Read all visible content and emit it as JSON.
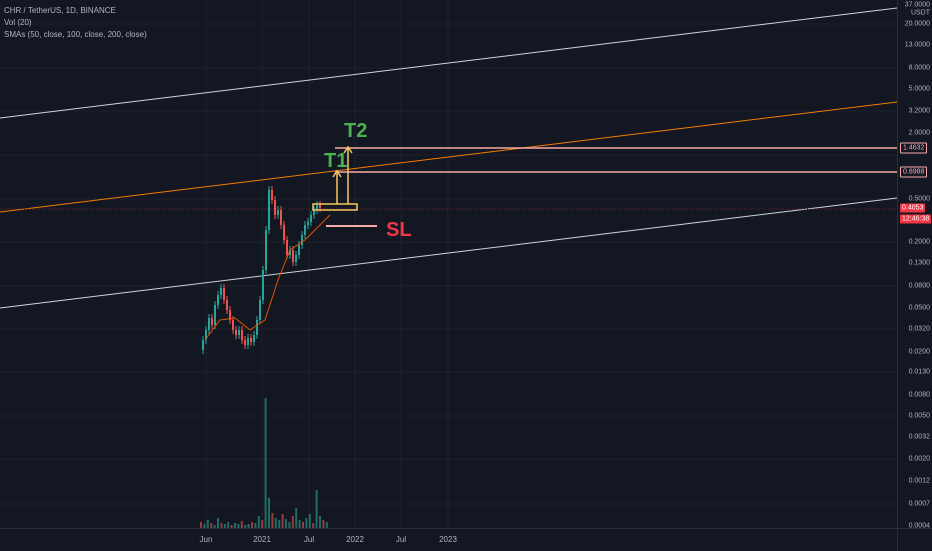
{
  "legend": {
    "symbol": "CHR / TetherUS, 1D, BINANCE",
    "volume": "Vol (20)",
    "sma": "SMAs (50, close, 100, close, 200, close)"
  },
  "price_axis": {
    "currency": "USDT",
    "ticks": [
      "37.0000",
      "20.0000",
      "13.0000",
      "8.0000",
      "5.0000",
      "3.2000",
      "2.0000",
      "0.5000",
      "0.2000",
      "0.1300",
      "0.0800",
      "0.0500",
      "0.0320",
      "0.0200",
      "0.0130",
      "0.0080",
      "0.0050",
      "0.0032",
      "0.0020",
      "0.0012",
      "0.0007",
      "0.0004"
    ],
    "tag_t2": "1.4632",
    "tag_t1": "0.8988",
    "tag_last_price": "0.4053",
    "tag_countdown": "12:46:38"
  },
  "time_axis": {
    "labels": [
      "Jun",
      "2021",
      "Jul",
      "2022",
      "Jul",
      "2023"
    ]
  },
  "annotations": {
    "t2": "T2",
    "t1": "T1",
    "sl": "SL"
  },
  "colors": {
    "background": "#131722",
    "up": "#26a69a",
    "down": "#ef5350",
    "target_lines": "#f7a9a8",
    "orange_channel": "#f57c00",
    "white_channel": "#d1d4dc",
    "t_label": "#4caf50",
    "sl_label": "#f23645"
  }
}
